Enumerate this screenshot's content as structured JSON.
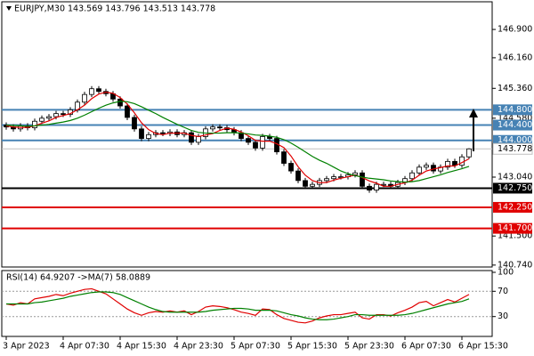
{
  "chart_data": {
    "type": "candlestick",
    "title": "EURJPY,M30 143.569 143.796 143.513 143.778",
    "categories": [
      "3 Apr 2023",
      null,
      null,
      null,
      null,
      null,
      null,
      null,
      "4 Apr 07:30",
      null,
      null,
      null,
      null,
      null,
      null,
      null,
      "4 Apr 15:30",
      null,
      null,
      null,
      null,
      null,
      null,
      null,
      "4 Apr 23:30",
      null,
      null,
      null,
      null,
      null,
      null,
      null,
      "5 Apr 07:30",
      null,
      null,
      null,
      null,
      null,
      null,
      null,
      "5 Apr 15:30",
      null,
      null,
      null,
      null,
      null,
      null,
      null,
      "5 Apr 23:30",
      null,
      null,
      null,
      null,
      null,
      null,
      null,
      "6 Apr 07:30",
      null,
      null,
      null,
      null,
      null,
      null,
      null,
      "6 Apr 15:30",
      null
    ],
    "open": [
      144.4,
      144.35,
      144.3,
      144.38,
      144.33,
      144.5,
      144.58,
      144.62,
      144.7,
      144.68,
      144.8,
      145.0,
      145.2,
      145.35,
      145.28,
      145.22,
      145.08,
      144.9,
      144.6,
      144.3,
      144.05,
      144.15,
      144.2,
      144.18,
      144.22,
      144.15,
      144.2,
      143.95,
      144.1,
      144.3,
      144.35,
      144.33,
      144.28,
      144.2,
      144.05,
      143.95,
      143.8,
      144.1,
      144.05,
      143.7,
      143.4,
      143.2,
      142.95,
      142.8,
      142.85,
      142.95,
      143.0,
      143.05,
      143.05,
      143.1,
      143.15,
      142.8,
      142.7,
      142.85,
      142.85,
      142.8,
      142.9,
      143.0,
      143.15,
      143.3,
      143.35,
      143.2,
      143.3,
      143.45,
      143.35,
      143.569
    ],
    "high": [
      144.47,
      144.42,
      144.45,
      144.45,
      144.57,
      144.65,
      144.69,
      144.77,
      144.77,
      144.87,
      145.07,
      145.27,
      145.42,
      145.42,
      145.35,
      145.29,
      145.15,
      144.97,
      144.67,
      144.37,
      144.22,
      144.27,
      144.27,
      144.29,
      144.29,
      144.27,
      144.27,
      144.17,
      144.37,
      144.42,
      144.42,
      144.4,
      144.35,
      144.27,
      144.12,
      144.02,
      144.17,
      144.17,
      144.12,
      143.77,
      143.47,
      143.27,
      143.02,
      142.92,
      143.02,
      143.07,
      143.12,
      143.12,
      143.17,
      143.22,
      143.22,
      142.87,
      142.92,
      142.92,
      142.92,
      142.97,
      143.07,
      143.22,
      143.37,
      143.42,
      143.42,
      143.37,
      143.52,
      143.52,
      143.64,
      143.796
    ],
    "low": [
      144.28,
      144.23,
      144.23,
      144.26,
      144.26,
      144.43,
      144.51,
      144.55,
      144.61,
      144.61,
      144.73,
      144.93,
      145.13,
      145.21,
      145.15,
      145.01,
      144.83,
      144.53,
      144.23,
      143.98,
      143.98,
      144.08,
      144.11,
      144.11,
      144.08,
      144.08,
      143.88,
      143.88,
      144.03,
      144.23,
      144.26,
      144.21,
      144.13,
      143.98,
      143.88,
      143.73,
      143.73,
      143.98,
      143.63,
      143.33,
      143.13,
      142.88,
      142.73,
      142.73,
      142.78,
      142.88,
      142.93,
      142.98,
      142.98,
      143.03,
      142.73,
      142.63,
      142.63,
      142.78,
      142.73,
      142.73,
      142.83,
      142.93,
      143.08,
      143.23,
      143.13,
      143.13,
      143.23,
      143.28,
      143.28,
      143.513
    ],
    "close": [
      144.35,
      144.3,
      144.38,
      144.33,
      144.5,
      144.58,
      144.62,
      144.7,
      144.68,
      144.8,
      145.0,
      145.2,
      145.35,
      145.28,
      145.22,
      145.08,
      144.9,
      144.6,
      144.3,
      144.05,
      144.15,
      144.2,
      144.18,
      144.22,
      144.15,
      144.2,
      143.95,
      144.1,
      144.3,
      144.35,
      144.33,
      144.28,
      144.2,
      144.05,
      143.95,
      143.8,
      144.1,
      144.05,
      143.7,
      143.4,
      143.2,
      142.95,
      142.8,
      142.85,
      142.95,
      143.0,
      143.05,
      143.05,
      143.1,
      143.15,
      142.8,
      142.7,
      142.85,
      142.85,
      142.8,
      142.9,
      143.0,
      143.15,
      143.3,
      143.35,
      143.2,
      143.3,
      143.45,
      143.35,
      143.569,
      143.778
    ],
    "moving_averages": [
      {
        "color": "#e00000",
        "values": [
          144.38,
          144.35,
          144.34,
          144.34,
          144.38,
          144.45,
          144.51,
          144.6,
          144.65,
          144.7,
          144.8,
          144.92,
          145.09,
          145.21,
          145.26,
          145.23,
          145.12,
          144.95,
          144.72,
          144.46,
          144.28,
          144.18,
          144.15,
          144.19,
          144.19,
          144.19,
          144.13,
          144.1,
          144.14,
          144.18,
          144.26,
          144.32,
          144.29,
          144.22,
          144.12,
          144.0,
          143.98,
          143.98,
          143.91,
          143.81,
          143.59,
          143.31,
          143.09,
          142.95,
          142.89,
          142.9,
          142.96,
          143.01,
          143.05,
          143.09,
          143.03,
          142.94,
          142.88,
          142.8,
          142.8,
          142.85,
          142.89,
          142.96,
          143.09,
          143.2,
          143.25,
          143.29,
          143.33,
          143.33,
          143.42,
          143.52
        ]
      },
      {
        "color": "#008000",
        "values": [
          144.4,
          144.39,
          144.38,
          144.37,
          144.38,
          144.4,
          144.42,
          144.45,
          144.48,
          144.52,
          144.58,
          144.66,
          144.75,
          144.84,
          144.92,
          144.98,
          145.02,
          145.01,
          144.96,
          144.88,
          144.79,
          144.7,
          144.6,
          144.51,
          144.42,
          144.34,
          144.26,
          144.21,
          144.19,
          144.19,
          144.19,
          144.2,
          144.2,
          144.19,
          144.17,
          144.14,
          144.13,
          144.11,
          144.08,
          144.02,
          143.93,
          143.82,
          143.7,
          143.58,
          143.48,
          143.4,
          143.3,
          143.2,
          143.13,
          143.08,
          143.04,
          143.01,
          142.99,
          142.97,
          142.94,
          142.92,
          142.91,
          142.92,
          142.95,
          143.0,
          143.05,
          143.1,
          143.16,
          143.21,
          143.26,
          143.32
        ]
      }
    ],
    "ylim": [
      140.69,
      147.6
    ],
    "yticks": [
      {
        "value": 146.9,
        "label": "146.900"
      },
      {
        "value": 146.16,
        "label": "146.160"
      },
      {
        "value": 145.36,
        "label": "145.360"
      },
      {
        "value": 144.58,
        "label": "144.580"
      },
      {
        "value": 143.04,
        "label": "143.040"
      },
      {
        "value": 141.5,
        "label": "141.500"
      },
      {
        "value": 140.74,
        "label": "140.740"
      }
    ],
    "levels": [
      {
        "value": 144.8,
        "label": "144.800",
        "color": "#4682b4"
      },
      {
        "value": 144.4,
        "label": "144.400",
        "color": "#4682b4"
      },
      {
        "value": 144.0,
        "label": "144.000",
        "color": "#4682b4"
      },
      {
        "value": 142.75,
        "label": "142.750",
        "color": "#000000"
      },
      {
        "value": 142.25,
        "label": "142.250",
        "color": "#e00000"
      },
      {
        "value": 141.7,
        "label": "141.700",
        "color": "#e00000"
      }
    ],
    "current_price": {
      "value": 143.778,
      "label": "143.778"
    },
    "indicator": {
      "title": "RSI(14) 64.9207 ->MA(7) 58.0889",
      "ylim": [
        0,
        100
      ],
      "yticks": [
        100,
        70,
        30
      ],
      "series": [
        {
          "color": "#e00000",
          "values": [
            50,
            48,
            52,
            50,
            58,
            60,
            62,
            65,
            63,
            67,
            70,
            73,
            74,
            70,
            66,
            58,
            50,
            42,
            36,
            32,
            36,
            38,
            37,
            39,
            37,
            39,
            33,
            38,
            45,
            47,
            46,
            44,
            41,
            37,
            35,
            32,
            42,
            41,
            33,
            27,
            24,
            21,
            20,
            23,
            28,
            31,
            33,
            33,
            35,
            37,
            28,
            26,
            33,
            33,
            31,
            36,
            40,
            45,
            52,
            54,
            47,
            52,
            57,
            53,
            59,
            64.9207
          ]
        },
        {
          "color": "#008000",
          "values": [
            50,
            50,
            50,
            50,
            52,
            53,
            55,
            57,
            59,
            62,
            64,
            66,
            68,
            69,
            69,
            68,
            65,
            60,
            55,
            50,
            45,
            41,
            38,
            37,
            37,
            37,
            37,
            37,
            38,
            40,
            41,
            42,
            43,
            43,
            42,
            40,
            40,
            40,
            39,
            36,
            33,
            31,
            28,
            26,
            25,
            25,
            26,
            28,
            30,
            33,
            33,
            32,
            32,
            32,
            32,
            32,
            33,
            35,
            38,
            41,
            44,
            47,
            50,
            52,
            54,
            58.0889
          ]
        }
      ]
    }
  }
}
